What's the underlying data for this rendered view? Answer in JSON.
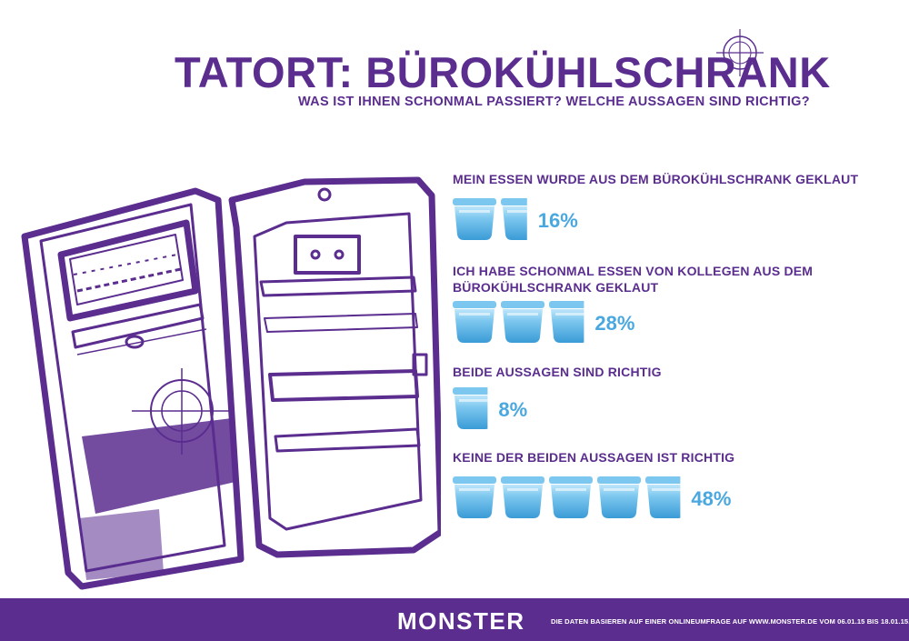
{
  "header": {
    "title": "TATORT: BÜROKÜHLSCHRANK",
    "subtitle": "WAS IST IHNEN SCHONMAL PASSIERT? WELCHE AUSSAGEN SIND RICHTIG?"
  },
  "chart_data": {
    "type": "bar",
    "categories": [
      "MEIN ESSEN WURDE AUS DEM BÜROKÜHLSCHRANK GEKLAUT",
      "ICH HABE SCHONMAL ESSEN VON KOLLEGEN AUS DEM BÜROKÜHLSCHRANK GEKLAUT",
      "BEIDE AUSSAGEN SIND RICHTIG",
      "KEINE DER BEIDEN AUSSAGEN IST RICHTIG"
    ],
    "values": [
      16,
      28,
      8,
      48
    ],
    "labels": [
      "16%",
      "28%",
      "8%",
      "48%"
    ],
    "unit": "%",
    "icon": "food-container-icon",
    "icon_unit_percent": 10
  },
  "footer": {
    "logo": "MONSTER",
    "source": "DIE DATEN BASIEREN AUF EINER ONLINEUMFRAGE  AUF WWW.MONSTER.DE VOM 06.01.15 BIS 18.01.15."
  },
  "colors": {
    "purple": "#5a2d8f",
    "container_blue": "#7cc7ef",
    "container_dark": "#3a9bd6",
    "percent_blue": "#4aa8e0"
  }
}
